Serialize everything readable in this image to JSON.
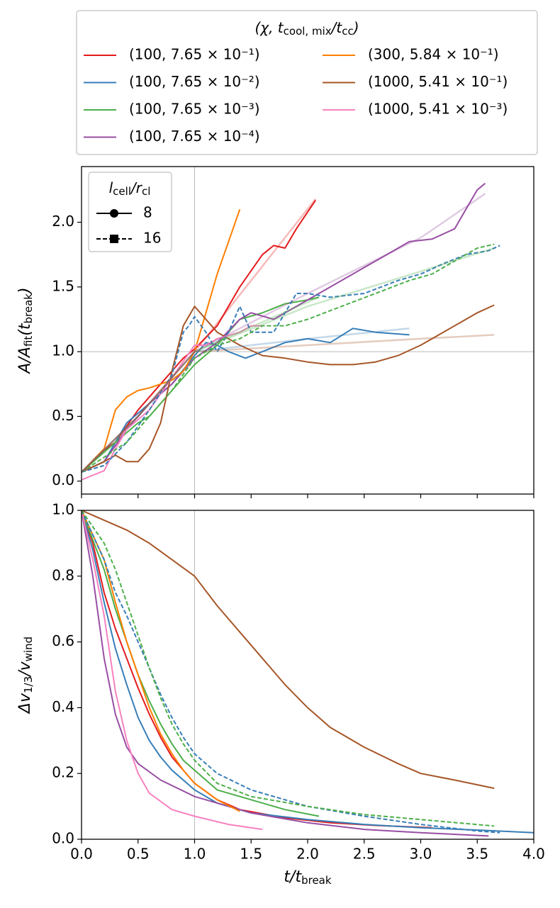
{
  "legend": {
    "title": [
      "(χ, t",
      "cool, mix",
      "/t",
      "cc",
      ")"
    ]
  },
  "chart_data": [
    {
      "type": "line",
      "ylabel": [
        "A/A",
        "fit",
        "(t",
        "break",
        ")"
      ],
      "xlim": [
        0,
        4
      ],
      "ylim": [
        -0.1,
        2.43
      ],
      "xticks": [
        0,
        0.5,
        1,
        1.5,
        2,
        2.5,
        3,
        3.5,
        4
      ],
      "show_xtick_labels": false,
      "yticks": [
        {
          "value": 0,
          "label": "0.0"
        },
        0.5,
        {
          "value": 1,
          "label": "1.0"
        },
        1.5,
        {
          "value": 2,
          "label": "2.0"
        }
      ],
      "vline": 1,
      "hline": 1,
      "style_legend": {
        "title": [
          "l",
          "cell",
          "/r",
          "cl"
        ],
        "entries": [
          {
            "name": "8",
            "style": "solid",
            "marker": "circle"
          },
          {
            "name": "16",
            "style": "dashed",
            "marker": "square"
          }
        ]
      },
      "series": [
        {
          "name": "(100, 7.65 × 10⁻¹)",
          "color": "#e41a1c",
          "style": "solid",
          "x": [
            0,
            0.2,
            0.3,
            0.5,
            0.7,
            0.9,
            1.0,
            1.2,
            1.4,
            1.6,
            1.7,
            1.8,
            1.9,
            2.07
          ],
          "values": [
            0.07,
            0.24,
            0.3,
            0.55,
            0.75,
            0.95,
            1.02,
            1.2,
            1.5,
            1.75,
            1.82,
            1.8,
            1.95,
            2.17
          ]
        },
        {
          "name": "(100, 7.65 × 10⁻²)",
          "color": "#377eb8",
          "style": "solid",
          "x": [
            0,
            0.2,
            0.4,
            0.6,
            0.8,
            1.0,
            1.1,
            1.2,
            1.3,
            1.45,
            1.6,
            1.8,
            2.0,
            2.2,
            2.4,
            2.6,
            2.9
          ],
          "values": [
            0.07,
            0.15,
            0.45,
            0.6,
            0.75,
            0.97,
            1.07,
            1.05,
            1.0,
            0.95,
            1.0,
            1.07,
            1.1,
            1.07,
            1.18,
            1.15,
            1.13
          ]
        },
        {
          "name": "(100, 7.65 × 10⁻³)",
          "color": "#4daf4a",
          "style": "solid",
          "x": [
            0,
            0.3,
            0.5,
            0.6,
            0.8,
            1.0,
            1.2,
            1.4,
            1.6,
            1.8,
            2.0,
            2.1
          ],
          "values": [
            0.07,
            0.3,
            0.45,
            0.5,
            0.7,
            0.9,
            1.05,
            1.25,
            1.3,
            1.37,
            1.4,
            1.42
          ]
        },
        {
          "name": "(100, 7.65 × 10⁻⁴)",
          "color": "#984ea3",
          "style": "solid",
          "x": [
            0,
            0.2,
            0.4,
            0.6,
            0.8,
            1.0,
            1.2,
            1.4,
            1.5,
            1.7,
            1.9,
            2.1,
            2.3,
            2.5,
            2.7,
            2.9,
            3.1,
            3.3,
            3.4,
            3.5,
            3.57
          ],
          "values": [
            0.07,
            0.15,
            0.4,
            0.6,
            0.75,
            0.95,
            1.07,
            1.25,
            1.3,
            1.25,
            1.35,
            1.45,
            1.55,
            1.65,
            1.75,
            1.85,
            1.87,
            1.95,
            2.1,
            2.25,
            2.3
          ]
        },
        {
          "name": "(300, 5.84 × 10⁻¹)",
          "color": "#ff7f00",
          "style": "solid",
          "x": [
            0,
            0.2,
            0.3,
            0.4,
            0.5,
            0.6,
            0.8,
            0.9,
            1.0,
            1.1,
            1.2,
            1.3,
            1.4
          ],
          "values": [
            0.07,
            0.25,
            0.55,
            0.65,
            0.7,
            0.72,
            0.78,
            0.85,
            1.0,
            1.3,
            1.6,
            1.85,
            2.1
          ]
        },
        {
          "name": "(1000, 5.41 × 10⁻¹)",
          "color": "#a65628",
          "style": "solid",
          "x": [
            0,
            0.2,
            0.3,
            0.4,
            0.5,
            0.6,
            0.7,
            0.8,
            0.9,
            1.0,
            1.1,
            1.2,
            1.4,
            1.6,
            1.8,
            2.0,
            2.2,
            2.4,
            2.6,
            2.8,
            3.0,
            3.2,
            3.4,
            3.5,
            3.65
          ],
          "values": [
            0.07,
            0.15,
            0.2,
            0.15,
            0.15,
            0.25,
            0.45,
            0.85,
            1.2,
            1.35,
            1.25,
            1.15,
            1.05,
            0.97,
            0.95,
            0.92,
            0.9,
            0.9,
            0.92,
            0.97,
            1.05,
            1.15,
            1.25,
            1.3,
            1.36
          ]
        },
        {
          "name": "(1000, 5.41 × 10⁻³)",
          "color": "#f781bf",
          "style": "solid",
          "x": [
            0,
            0.2,
            0.3,
            0.4,
            0.6,
            0.8,
            1.0,
            1.1,
            1.2,
            1.4,
            1.5,
            1.6
          ],
          "values": [
            0.01,
            0.08,
            0.25,
            0.4,
            0.55,
            0.8,
            1.05,
            1.05,
            1.1,
            1.15,
            1.2,
            1.2
          ]
        },
        {
          "color": "#377eb8",
          "style": "dashed",
          "x": [
            0,
            0.2,
            0.4,
            0.6,
            0.8,
            0.9,
            0.95,
            1.0,
            1.1,
            1.2,
            1.3,
            1.4,
            1.5,
            1.7,
            1.9,
            2.0,
            2.2,
            2.5,
            2.8,
            3.0,
            3.2,
            3.4,
            3.6,
            3.7
          ],
          "values": [
            0.07,
            0.12,
            0.3,
            0.55,
            0.82,
            1.15,
            1.2,
            1.27,
            1.15,
            1.0,
            1.15,
            1.35,
            1.15,
            1.15,
            1.45,
            1.45,
            1.42,
            1.45,
            1.55,
            1.6,
            1.68,
            1.75,
            1.78,
            1.82
          ]
        },
        {
          "color": "#4daf4a",
          "style": "dashed",
          "x": [
            0,
            0.4,
            0.6,
            0.8,
            1.0,
            1.2,
            1.4,
            1.6,
            1.8,
            2.0,
            2.3,
            2.6,
            2.9,
            3.1,
            3.3,
            3.5,
            3.65
          ],
          "values": [
            0.07,
            0.3,
            0.5,
            0.7,
            0.95,
            1.05,
            1.1,
            1.2,
            1.2,
            1.25,
            1.35,
            1.45,
            1.55,
            1.6,
            1.7,
            1.8,
            1.83
          ]
        },
        {
          "color": "#e41a1c",
          "style": "fit",
          "x": [
            0,
            0.5,
            1,
            1.5,
            2.07
          ],
          "values": [
            0.07,
            0.5,
            1,
            1.55,
            2.18
          ]
        },
        {
          "color": "#377eb8",
          "style": "fit",
          "x": [
            0,
            0.5,
            1,
            2,
            2.9
          ],
          "values": [
            0.07,
            0.5,
            1,
            1.1,
            1.18
          ]
        },
        {
          "color": "#4daf4a",
          "style": "fit",
          "x": [
            0,
            0.5,
            1,
            2.1
          ],
          "values": [
            0.07,
            0.5,
            1,
            1.42
          ]
        },
        {
          "color": "#4daf4a",
          "style": "fit",
          "x": [
            1,
            2,
            3,
            3.65
          ],
          "values": [
            1,
            1.35,
            1.62,
            1.8
          ]
        },
        {
          "color": "#984ea3",
          "style": "fit",
          "x": [
            0,
            0.5,
            1,
            2,
            3,
            3.57
          ],
          "values": [
            0.07,
            0.5,
            1,
            1.45,
            1.88,
            2.22
          ]
        },
        {
          "color": "#a65628",
          "style": "fit",
          "x": [
            0,
            0.5,
            1,
            2,
            3,
            3.65
          ],
          "values": [
            0.07,
            0.5,
            1,
            1.05,
            1.1,
            1.13
          ]
        }
      ]
    },
    {
      "type": "line",
      "xlabel": [
        "t/t",
        "break"
      ],
      "ylabel": [
        "Δv",
        "1/3",
        "/v",
        "wind"
      ],
      "xlim": [
        0,
        4
      ],
      "ylim": [
        0,
        1
      ],
      "xticks": [
        {
          "value": 0,
          "label": "0.0"
        },
        0.5,
        {
          "value": 1,
          "label": "1.0"
        },
        1.5,
        {
          "value": 2,
          "label": "2.0"
        },
        2.5,
        {
          "value": 3,
          "label": "3.0"
        },
        3.5,
        {
          "value": 4,
          "label": "4.0"
        }
      ],
      "show_xtick_labels": true,
      "yticks": [
        {
          "value": 0,
          "label": "0.0"
        },
        0.2,
        0.4,
        0.6,
        0.8,
        {
          "value": 1,
          "label": "1.0"
        }
      ],
      "vline": 1,
      "series": [
        {
          "color": "#e41a1c",
          "style": "solid",
          "x": [
            0,
            0.1,
            0.2,
            0.3,
            0.4,
            0.5,
            0.6,
            0.7,
            0.8,
            0.9,
            1.0,
            1.2,
            1.4,
            1.8,
            2.2,
            2.6,
            3.1
          ],
          "values": [
            1,
            0.9,
            0.75,
            0.64,
            0.55,
            0.46,
            0.38,
            0.31,
            0.25,
            0.21,
            0.17,
            0.12,
            0.09,
            0.065,
            0.05,
            0.042,
            0.035
          ]
        },
        {
          "color": "#377eb8",
          "style": "solid",
          "x": [
            0,
            0.1,
            0.2,
            0.3,
            0.4,
            0.5,
            0.6,
            0.7,
            0.8,
            0.9,
            1.0,
            1.2,
            1.5,
            2.0,
            2.5,
            3.0,
            3.5,
            4.0
          ],
          "values": [
            1,
            0.88,
            0.72,
            0.58,
            0.47,
            0.37,
            0.3,
            0.25,
            0.21,
            0.18,
            0.15,
            0.11,
            0.08,
            0.06,
            0.045,
            0.035,
            0.028,
            0.02
          ]
        },
        {
          "color": "#4daf4a",
          "style": "solid",
          "x": [
            0,
            0.2,
            0.3,
            0.4,
            0.5,
            0.6,
            0.7,
            0.8,
            0.9,
            1.0,
            1.2,
            1.5,
            1.8,
            2.1
          ],
          "values": [
            1,
            0.82,
            0.7,
            0.6,
            0.5,
            0.42,
            0.35,
            0.29,
            0.24,
            0.21,
            0.15,
            0.12,
            0.09,
            0.07
          ]
        },
        {
          "color": "#984ea3",
          "style": "solid",
          "x": [
            0,
            0.1,
            0.2,
            0.3,
            0.4,
            0.5,
            0.7,
            1.0,
            1.5,
            2.0,
            2.5,
            3.0,
            3.6
          ],
          "values": [
            1,
            0.8,
            0.55,
            0.38,
            0.28,
            0.23,
            0.18,
            0.13,
            0.08,
            0.05,
            0.03,
            0.02,
            0.01
          ]
        },
        {
          "color": "#ff7f00",
          "style": "solid",
          "x": [
            0,
            0.2,
            0.3,
            0.4,
            0.5,
            0.6,
            0.7,
            0.8,
            0.9,
            1.0,
            1.2,
            1.4
          ],
          "values": [
            1,
            0.85,
            0.72,
            0.6,
            0.5,
            0.4,
            0.32,
            0.26,
            0.21,
            0.17,
            0.12,
            0.085
          ]
        },
        {
          "color": "#a65628",
          "style": "solid",
          "x": [
            0,
            0.2,
            0.4,
            0.6,
            0.8,
            1.0,
            1.2,
            1.4,
            1.6,
            1.8,
            2.0,
            2.2,
            2.5,
            2.8,
            3.0,
            3.3,
            3.65
          ],
          "values": [
            1,
            0.97,
            0.94,
            0.9,
            0.85,
            0.8,
            0.71,
            0.63,
            0.55,
            0.47,
            0.4,
            0.34,
            0.28,
            0.23,
            0.2,
            0.18,
            0.155
          ]
        },
        {
          "color": "#f781bf",
          "style": "solid",
          "x": [
            0,
            0.1,
            0.2,
            0.3,
            0.4,
            0.5,
            0.6,
            0.8,
            1.0,
            1.3,
            1.6
          ],
          "values": [
            1,
            0.85,
            0.68,
            0.45,
            0.3,
            0.2,
            0.14,
            0.09,
            0.07,
            0.045,
            0.03
          ]
        },
        {
          "color": "#377eb8",
          "style": "dashed",
          "x": [
            0,
            0.2,
            0.3,
            0.4,
            0.5,
            0.6,
            0.7,
            0.8,
            0.9,
            1.0,
            1.2,
            1.5,
            2.0,
            2.5,
            3.0,
            3.5,
            3.7
          ],
          "values": [
            1,
            0.85,
            0.75,
            0.68,
            0.6,
            0.52,
            0.44,
            0.37,
            0.31,
            0.26,
            0.2,
            0.15,
            0.1,
            0.07,
            0.045,
            0.025,
            0.02
          ]
        },
        {
          "color": "#4daf4a",
          "style": "dashed",
          "x": [
            0,
            0.2,
            0.3,
            0.4,
            0.5,
            0.6,
            0.7,
            0.8,
            0.9,
            1.0,
            1.2,
            1.5,
            2.0,
            2.5,
            3.0,
            3.65
          ],
          "values": [
            1,
            0.9,
            0.82,
            0.72,
            0.62,
            0.52,
            0.43,
            0.35,
            0.29,
            0.24,
            0.17,
            0.13,
            0.1,
            0.075,
            0.06,
            0.04
          ]
        }
      ]
    }
  ]
}
